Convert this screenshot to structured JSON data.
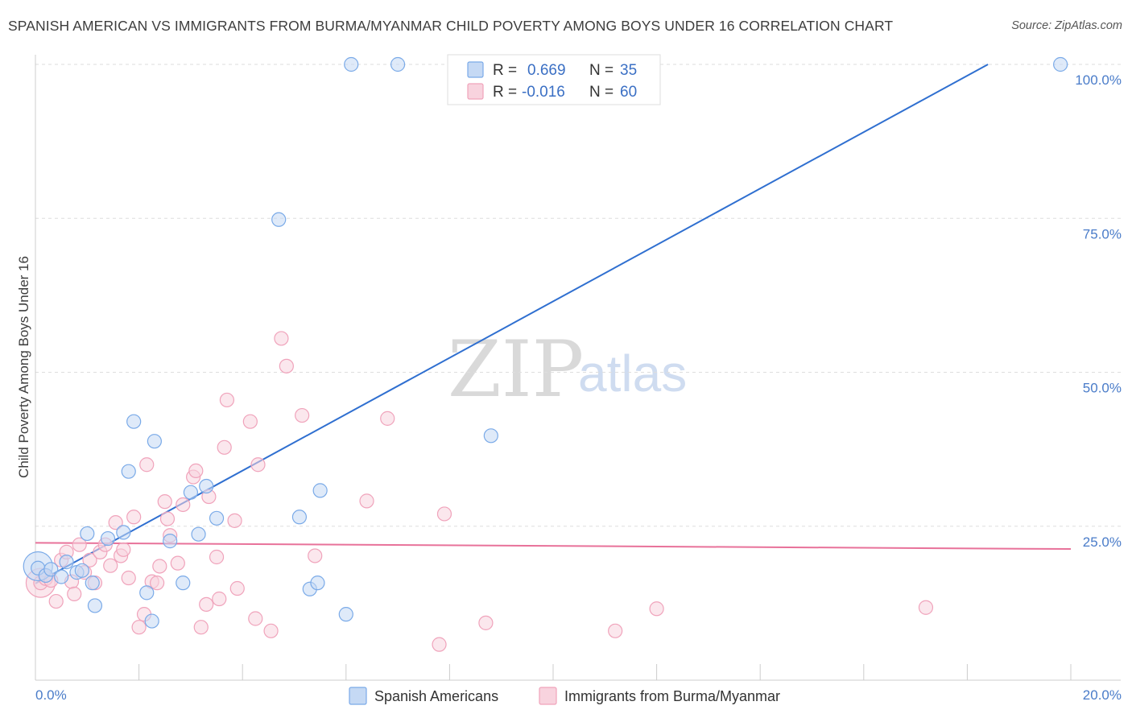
{
  "title": "SPANISH AMERICAN VS IMMIGRANTS FROM BURMA/MYANMAR CHILD POVERTY AMONG BOYS UNDER 16 CORRELATION CHART",
  "source": "Source: ZipAtlas.com",
  "watermark": {
    "zip": "ZIP",
    "atlas": "atlas"
  },
  "legend": {
    "rows": [
      {
        "r_label": "R =",
        "r_value": "0.669",
        "n_label": "N =",
        "n_value": "35",
        "color": "#7aaae8"
      },
      {
        "r_label": "R =",
        "r_value": "-0.016",
        "n_label": "N =",
        "n_value": "60",
        "color": "#f0a3bb"
      }
    ]
  },
  "bottom_legend": [
    "Spanish Americans",
    "Immigrants from Burma/Myanmar"
  ],
  "chart_data": {
    "type": "scatter",
    "title": "SPANISH AMERICAN VS IMMIGRANTS FROM BURMA/MYANMAR CHILD POVERTY AMONG BOYS UNDER 16 CORRELATION CHART",
    "xlabel": "",
    "ylabel": "Child Poverty Among Boys Under 16",
    "xlim": [
      0,
      20
    ],
    "ylim": [
      0,
      100
    ],
    "x_tick_labels": [
      {
        "value": 0,
        "label": "0.0%"
      },
      {
        "value": 20,
        "label": "20.0%"
      }
    ],
    "y_tick_labels": [
      {
        "value": 25,
        "label": "25.0%"
      },
      {
        "value": 50,
        "label": "50.0%"
      },
      {
        "value": 75,
        "label": "75.0%"
      },
      {
        "value": 100,
        "label": "100.0%"
      }
    ],
    "series": [
      {
        "name": "Spanish Americans",
        "color": "#7aaae8",
        "fill": "#c5d9f4",
        "R": 0.669,
        "N": 35,
        "trend": {
          "x0": 0.0,
          "y0": 15.7,
          "x1": 18.4,
          "y1": 100.0
        },
        "points": [
          [
            0.05,
            18.2
          ],
          [
            0.2,
            17.0
          ],
          [
            0.3,
            18.0
          ],
          [
            0.5,
            16.8
          ],
          [
            0.6,
            19.2
          ],
          [
            0.8,
            17.5
          ],
          [
            0.9,
            17.8
          ],
          [
            1.0,
            23.8
          ],
          [
            1.1,
            15.8
          ],
          [
            1.15,
            12.1
          ],
          [
            1.4,
            23.0
          ],
          [
            1.7,
            24.0
          ],
          [
            1.9,
            42.0
          ],
          [
            1.8,
            33.9
          ],
          [
            2.3,
            38.8
          ],
          [
            2.15,
            14.2
          ],
          [
            2.25,
            9.6
          ],
          [
            2.6,
            22.6
          ],
          [
            2.85,
            15.8
          ],
          [
            3.0,
            30.5
          ],
          [
            3.15,
            23.7
          ],
          [
            3.3,
            31.5
          ],
          [
            3.5,
            26.3
          ],
          [
            4.7,
            74.8
          ],
          [
            5.1,
            26.5
          ],
          [
            5.3,
            14.8
          ],
          [
            5.45,
            15.8
          ],
          [
            5.5,
            30.8
          ],
          [
            6.0,
            10.7
          ],
          [
            6.1,
            100
          ],
          [
            7.0,
            100
          ],
          [
            8.8,
            39.7
          ],
          [
            19.8,
            100
          ]
        ],
        "large_point": [
          0.05,
          18.5
        ]
      },
      {
        "name": "Immigrants from Burma/Myanmar",
        "color": "#f0a3bb",
        "fill": "#f8d3de",
        "R": -0.016,
        "N": 60,
        "trend": {
          "x0": 0.0,
          "y0": 22.3,
          "x1": 20.0,
          "y1": 21.3
        },
        "points": [
          [
            0.1,
            15.8
          ],
          [
            0.2,
            16.5
          ],
          [
            0.3,
            16.2
          ],
          [
            0.4,
            12.8
          ],
          [
            0.5,
            19.5
          ],
          [
            0.6,
            20.8
          ],
          [
            0.7,
            16.0
          ],
          [
            0.75,
            14.0
          ],
          [
            0.85,
            22.0
          ],
          [
            0.95,
            17.5
          ],
          [
            1.05,
            19.5
          ],
          [
            1.15,
            15.8
          ],
          [
            1.25,
            20.8
          ],
          [
            1.35,
            22.0
          ],
          [
            1.45,
            18.6
          ],
          [
            1.55,
            25.6
          ],
          [
            1.65,
            20.2
          ],
          [
            1.7,
            21.2
          ],
          [
            1.8,
            16.6
          ],
          [
            1.9,
            26.5
          ],
          [
            2.0,
            8.6
          ],
          [
            2.1,
            10.7
          ],
          [
            2.15,
            35.0
          ],
          [
            2.25,
            16.0
          ],
          [
            2.35,
            15.8
          ],
          [
            2.4,
            18.5
          ],
          [
            2.5,
            29.0
          ],
          [
            2.55,
            26.2
          ],
          [
            2.6,
            23.5
          ],
          [
            2.75,
            19.0
          ],
          [
            2.85,
            28.5
          ],
          [
            3.05,
            33.0
          ],
          [
            3.1,
            34.0
          ],
          [
            3.2,
            8.6
          ],
          [
            3.3,
            12.3
          ],
          [
            3.35,
            29.8
          ],
          [
            3.5,
            20.0
          ],
          [
            3.55,
            13.2
          ],
          [
            3.65,
            37.8
          ],
          [
            3.7,
            45.5
          ],
          [
            3.85,
            25.9
          ],
          [
            3.9,
            14.9
          ],
          [
            4.15,
            42.0
          ],
          [
            4.25,
            10.0
          ],
          [
            4.3,
            35.0
          ],
          [
            4.55,
            8.0
          ],
          [
            4.75,
            55.5
          ],
          [
            4.85,
            51.0
          ],
          [
            5.15,
            43.0
          ],
          [
            5.4,
            20.2
          ],
          [
            6.4,
            29.1
          ],
          [
            6.8,
            42.5
          ],
          [
            7.8,
            5.8
          ],
          [
            7.9,
            27.0
          ],
          [
            8.7,
            9.3
          ],
          [
            11.2,
            8.0
          ],
          [
            12.0,
            11.6
          ],
          [
            17.2,
            11.8
          ]
        ],
        "large_point": [
          0.1,
          15.8
        ]
      }
    ]
  }
}
